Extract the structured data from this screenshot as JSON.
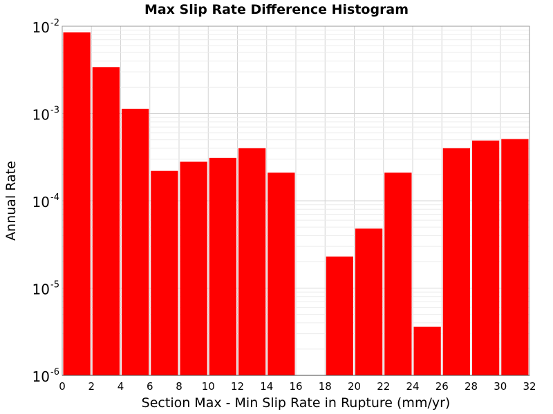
{
  "chart_data": {
    "type": "bar",
    "title": "Max Slip Rate Difference Histogram",
    "xlabel": "Section Max - Min Slip Rate in Rupture (mm/yr)",
    "ylabel": "Annual Rate",
    "x_scale": "linear",
    "y_scale": "log",
    "xlim": [
      0,
      32
    ],
    "ylim": [
      1e-06,
      0.01
    ],
    "x_ticks": [
      0,
      2,
      4,
      6,
      8,
      10,
      12,
      14,
      16,
      18,
      20,
      22,
      24,
      26,
      28,
      30,
      32
    ],
    "y_ticks": [
      {
        "base": "10",
        "exp": "-6",
        "value": 1e-06
      },
      {
        "base": "10",
        "exp": "-5",
        "value": 1e-05
      },
      {
        "base": "10",
        "exp": "-4",
        "value": 0.0001
      },
      {
        "base": "10",
        "exp": "-3",
        "value": 0.001
      },
      {
        "base": "10",
        "exp": "-2",
        "value": 0.01
      }
    ],
    "bin_width": 2,
    "bar_color": "#ff0000",
    "grid": true,
    "bins": [
      {
        "x_start": 0,
        "x_end": 2,
        "value": 0.0085
      },
      {
        "x_start": 2,
        "x_end": 4,
        "value": 0.0034
      },
      {
        "x_start": 4,
        "x_end": 6,
        "value": 0.00113
      },
      {
        "x_start": 6,
        "x_end": 8,
        "value": 0.00022
      },
      {
        "x_start": 8,
        "x_end": 10,
        "value": 0.00028
      },
      {
        "x_start": 10,
        "x_end": 12,
        "value": 0.00031
      },
      {
        "x_start": 12,
        "x_end": 14,
        "value": 0.0004
      },
      {
        "x_start": 14,
        "x_end": 16,
        "value": 0.00021
      },
      {
        "x_start": 16,
        "x_end": 18,
        "value": 0
      },
      {
        "x_start": 18,
        "x_end": 20,
        "value": 2.3e-05
      },
      {
        "x_start": 20,
        "x_end": 22,
        "value": 4.8e-05
      },
      {
        "x_start": 22,
        "x_end": 24,
        "value": 0.00021
      },
      {
        "x_start": 24,
        "x_end": 26,
        "value": 3.6e-06
      },
      {
        "x_start": 26,
        "x_end": 28,
        "value": 0.0004
      },
      {
        "x_start": 28,
        "x_end": 30,
        "value": 0.00049
      },
      {
        "x_start": 30,
        "x_end": 32,
        "value": 0.00051
      }
    ]
  }
}
